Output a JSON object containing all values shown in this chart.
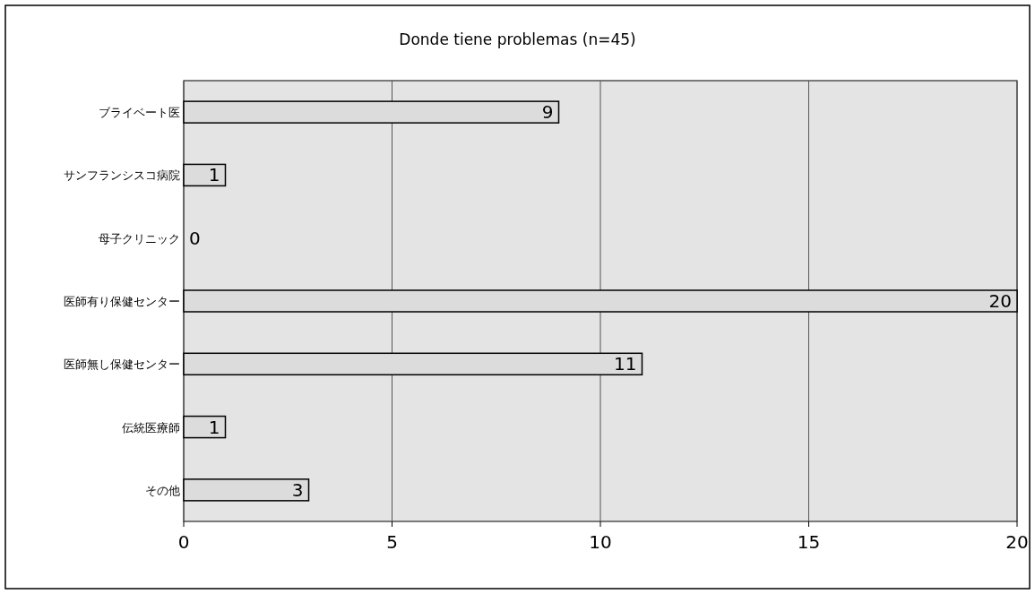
{
  "chart_data": {
    "type": "bar",
    "orientation": "horizontal",
    "title": "Donde tiene problemas (n=45)",
    "categories": [
      "ブライベート医",
      "サンフランシスコ病院",
      "母子クリニック",
      "医師有り保健センター",
      "医師無し保健センター",
      "伝統医療師",
      "その他"
    ],
    "values": [
      9,
      1,
      0,
      20,
      11,
      1,
      3
    ],
    "color": "#dcdcdc",
    "xlim": [
      0,
      20
    ],
    "xticks": [
      0,
      5,
      10,
      15,
      20
    ],
    "grid": "x",
    "data_labels": true
  }
}
